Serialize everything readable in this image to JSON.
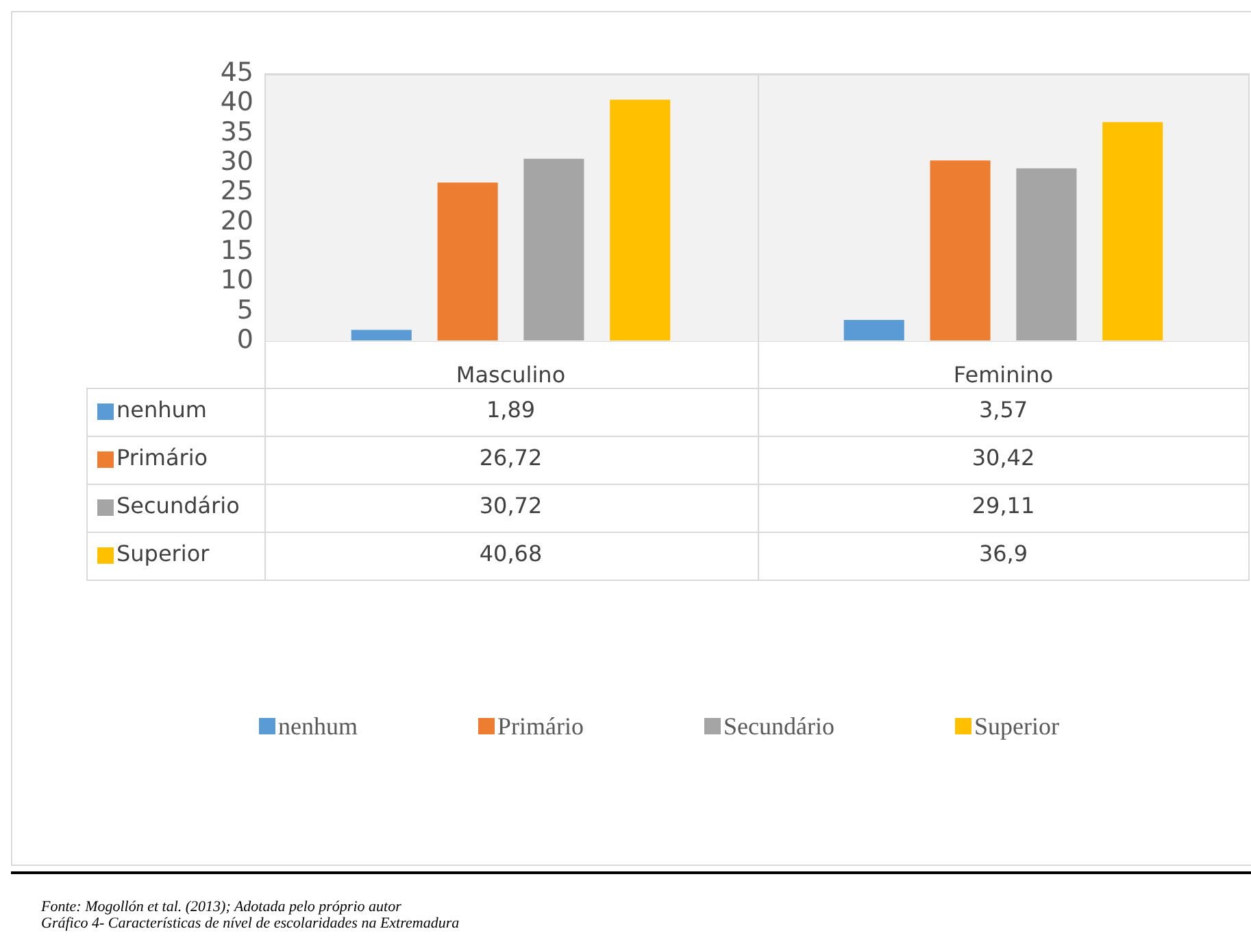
{
  "chart_data": {
    "type": "bar",
    "categories": [
      "Masculino",
      "Feminino"
    ],
    "series": [
      {
        "name": "nenhum",
        "color": "#5b9bd5",
        "values": [
          1.89,
          3.57
        ],
        "value_labels": [
          "1,89",
          "3,57"
        ]
      },
      {
        "name": "Primário",
        "color": "#ed7d31",
        "values": [
          26.72,
          30.42
        ],
        "value_labels": [
          "26,72",
          "30,42"
        ]
      },
      {
        "name": "Secundário",
        "color": "#a5a5a5",
        "values": [
          30.72,
          29.11
        ],
        "value_labels": [
          "30,72",
          "29,11"
        ]
      },
      {
        "name": "Superior",
        "color": "#ffc000",
        "values": [
          40.68,
          36.9
        ],
        "value_labels": [
          "40,68",
          "36,9"
        ]
      }
    ],
    "ylim": [
      0,
      45
    ],
    "yticks": [
      0,
      5,
      10,
      15,
      20,
      25,
      30,
      35,
      40,
      45
    ],
    "grid": true,
    "legend": "bottom",
    "annotations": [
      "Fonte: Mogollón et tal. (2013); Adotada pelo próprio autor",
      "Gráfico 4- Características de nível de escolaridades na Extremadura"
    ]
  }
}
